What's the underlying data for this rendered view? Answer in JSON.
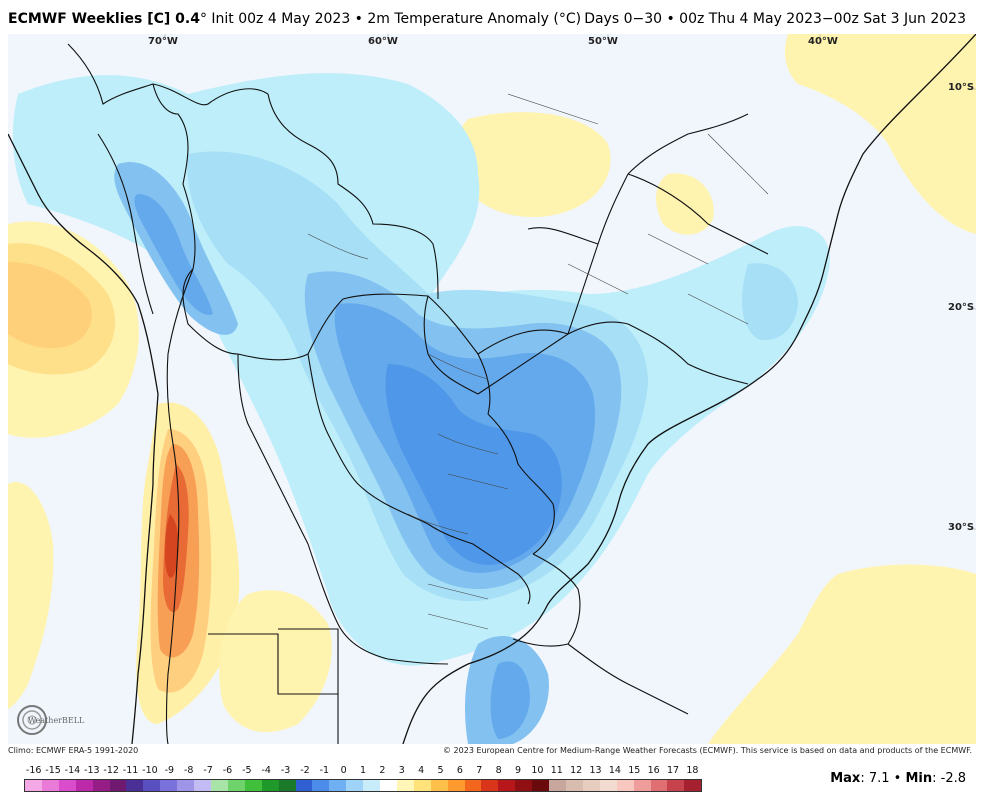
{
  "header": {
    "brand": "ECMWF Weeklies [C] 0.4",
    "subtitle": "° Init 00z 4 May 2023 • 2m Temperature Anomaly (°C)",
    "valid": "Days 0−30 • 00z Thu 4 May 2023−00z Sat 3 Jun 2023"
  },
  "map": {
    "lon_labels": [
      "70°W",
      "60°W",
      "50°W",
      "40°W"
    ],
    "lat_labels": [
      "10°S",
      "20°S",
      "30°S"
    ]
  },
  "footer": {
    "climo": "Climo: ECMWF ERA-5 1991-2020",
    "copyright": "© 2023 European Centre for Medium-Range Weather Forecasts (ECMWF). This service is based on data and products of the ECMWF.",
    "max_label": "Max",
    "max_value": "7.1",
    "min_label": "Min",
    "min_value": "-2.8",
    "logo_text": "WeatherBELL"
  },
  "colorbar": {
    "ticks": [
      "-16",
      "-15",
      "-14",
      "-13",
      "-12",
      "-11",
      "-10",
      "-9",
      "-8",
      "-7",
      "-6",
      "-5",
      "-4",
      "-3",
      "-2",
      "-1",
      "0",
      "1",
      "2",
      "3",
      "4",
      "5",
      "6",
      "7",
      "8",
      "9",
      "10",
      "11",
      "12",
      "13",
      "14",
      "15",
      "16",
      "17",
      "18"
    ],
    "colors": [
      "#f5a8e6",
      "#ea7ad8",
      "#d94ccb",
      "#bd2aa9",
      "#961d86",
      "#6f1a70",
      "#4a2f96",
      "#5a4fc0",
      "#7a71da",
      "#9e95e8",
      "#c3bbf3",
      "#a8e3a8",
      "#6ed36b",
      "#3fbf3a",
      "#1f9a2a",
      "#1a7a2a",
      "#2f5fd0",
      "#4b8bea",
      "#6fb0f2",
      "#9fd3f7",
      "#c9ecfb",
      "#ffffff",
      "#fff6b8",
      "#ffe27a",
      "#ffc04a",
      "#ff9a2e",
      "#f2661e",
      "#d8351a",
      "#b7161a",
      "#8f0f12",
      "#6a0a0c",
      "#c7a79d",
      "#d9bcb0",
      "#e7ccc0",
      "#f2dbd0",
      "#f7c7c0",
      "#ee9d9a",
      "#df6f73",
      "#c6424c",
      "#a5212f"
    ]
  }
}
